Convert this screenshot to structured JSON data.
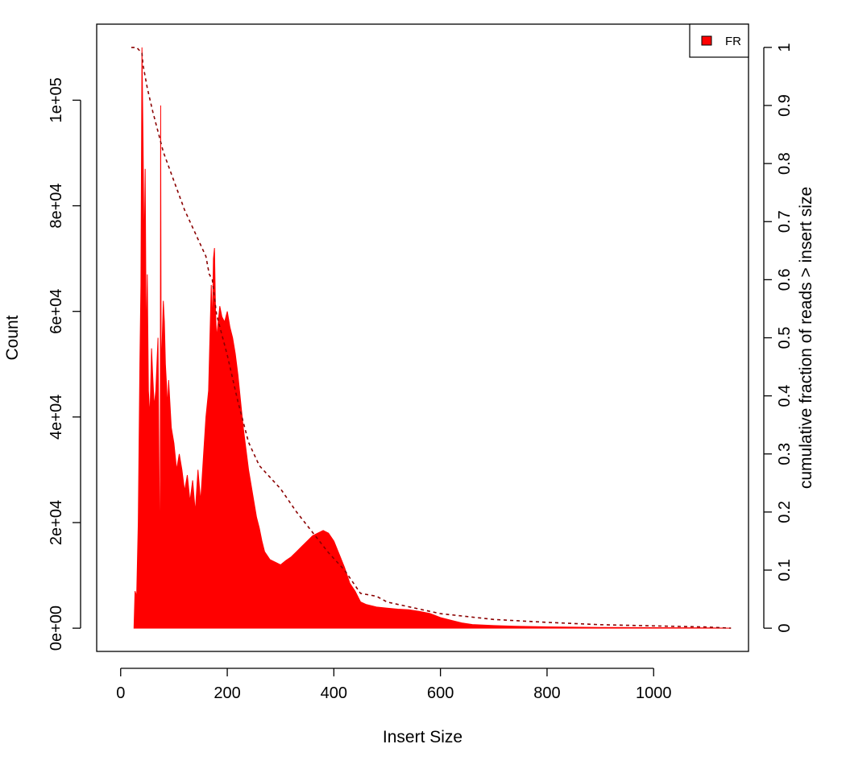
{
  "chart_data": {
    "type": "area",
    "title": "",
    "xlabel": "Insert Size",
    "ylabel": "Count",
    "y2label": "cumulative fraction of reads > insert size",
    "xlim": [
      -45,
      1178
    ],
    "ylim": [
      -4400,
      114400
    ],
    "y2lim": [
      -0.04,
      1.04
    ],
    "xticks": [
      0,
      200,
      400,
      600,
      800,
      1000
    ],
    "xtick_labels": [
      "0",
      "200",
      "400",
      "600",
      "800",
      "1000"
    ],
    "yticks": [
      0,
      20000,
      40000,
      60000,
      80000,
      100000
    ],
    "ytick_labels": [
      "0e+00",
      "2e+04",
      "4e+04",
      "6e+04",
      "8e+04",
      "1e+05"
    ],
    "y2ticks": [
      0,
      0.1,
      0.2,
      0.3,
      0.4,
      0.5,
      0.6,
      0.7,
      0.8,
      0.9,
      1
    ],
    "y2tick_labels": [
      "0",
      "0.1",
      "0.2",
      "0.3",
      "0.4",
      "0.5",
      "0.6",
      "0.7",
      "0.8",
      "0.9",
      "1"
    ],
    "legend": {
      "position": "top-right",
      "entries": [
        {
          "label": "FR",
          "color": "#ff0000"
        }
      ]
    },
    "grid": false,
    "series": [
      {
        "name": "FR",
        "kind": "histogram",
        "color": "#ff0000",
        "x": [
          25,
          27,
          30,
          33,
          36,
          38,
          40,
          42,
          44,
          46,
          48,
          50,
          52,
          55,
          58,
          60,
          63,
          66,
          70,
          72,
          74,
          75,
          76,
          78,
          80,
          82,
          84,
          86,
          88,
          90,
          95,
          100,
          105,
          110,
          115,
          120,
          125,
          130,
          135,
          140,
          145,
          150,
          155,
          160,
          165,
          170,
          172,
          174,
          176,
          178,
          180,
          183,
          186,
          190,
          195,
          200,
          205,
          210,
          215,
          220,
          225,
          230,
          235,
          240,
          245,
          250,
          255,
          260,
          265,
          270,
          280,
          290,
          300,
          310,
          320,
          330,
          340,
          350,
          360,
          370,
          380,
          390,
          400,
          410,
          420,
          430,
          440,
          450,
          460,
          480,
          500,
          520,
          540,
          560,
          580,
          600,
          620,
          640,
          660,
          700,
          750,
          800,
          900,
          1000,
          1100,
          1145
        ],
        "y": [
          0,
          7000,
          6000,
          20000,
          50000,
          65000,
          110000,
          93000,
          70000,
          87000,
          52000,
          67000,
          45000,
          40000,
          53000,
          48000,
          42000,
          45000,
          55000,
          30000,
          6000,
          99000,
          48000,
          55000,
          62000,
          58000,
          50000,
          46000,
          42000,
          47000,
          38000,
          35000,
          30000,
          33000,
          30000,
          26000,
          29000,
          24000,
          28000,
          22000,
          30000,
          24000,
          32000,
          40000,
          45000,
          65000,
          57000,
          70000,
          72000,
          60000,
          55000,
          58000,
          61000,
          59000,
          58000,
          60000,
          57000,
          55000,
          52000,
          48000,
          43000,
          38000,
          34000,
          30000,
          27000,
          24000,
          21000,
          19000,
          16500,
          14500,
          13000,
          12500,
          12000,
          12800,
          13500,
          14500,
          15500,
          16500,
          17500,
          18000,
          18500,
          18000,
          16500,
          14000,
          11500,
          8500,
          7000,
          5000,
          4500,
          4000,
          3800,
          3600,
          3500,
          3200,
          2800,
          2000,
          1500,
          1000,
          700,
          500,
          350,
          250,
          150,
          100,
          50,
          0
        ]
      },
      {
        "name": "cumulative fraction of reads > insert size",
        "kind": "dashed-line",
        "color": "#8b0000",
        "axis": "right",
        "x": [
          20,
          30,
          40,
          42,
          50,
          60,
          80,
          100,
          120,
          140,
          160,
          166,
          172,
          180,
          200,
          220,
          240,
          260,
          280,
          300,
          330,
          360,
          390,
          420,
          450,
          480,
          500,
          550,
          600,
          650,
          700,
          800,
          900,
          1000,
          1100,
          1145
        ],
        "y": [
          1.0,
          1.0,
          0.99,
          0.97,
          0.93,
          0.89,
          0.82,
          0.77,
          0.72,
          0.68,
          0.64,
          0.61,
          0.6,
          0.54,
          0.47,
          0.39,
          0.32,
          0.28,
          0.26,
          0.24,
          0.2,
          0.165,
          0.13,
          0.1,
          0.06,
          0.055,
          0.045,
          0.035,
          0.025,
          0.02,
          0.015,
          0.01,
          0.006,
          0.004,
          0.002,
          0.0
        ]
      }
    ]
  }
}
